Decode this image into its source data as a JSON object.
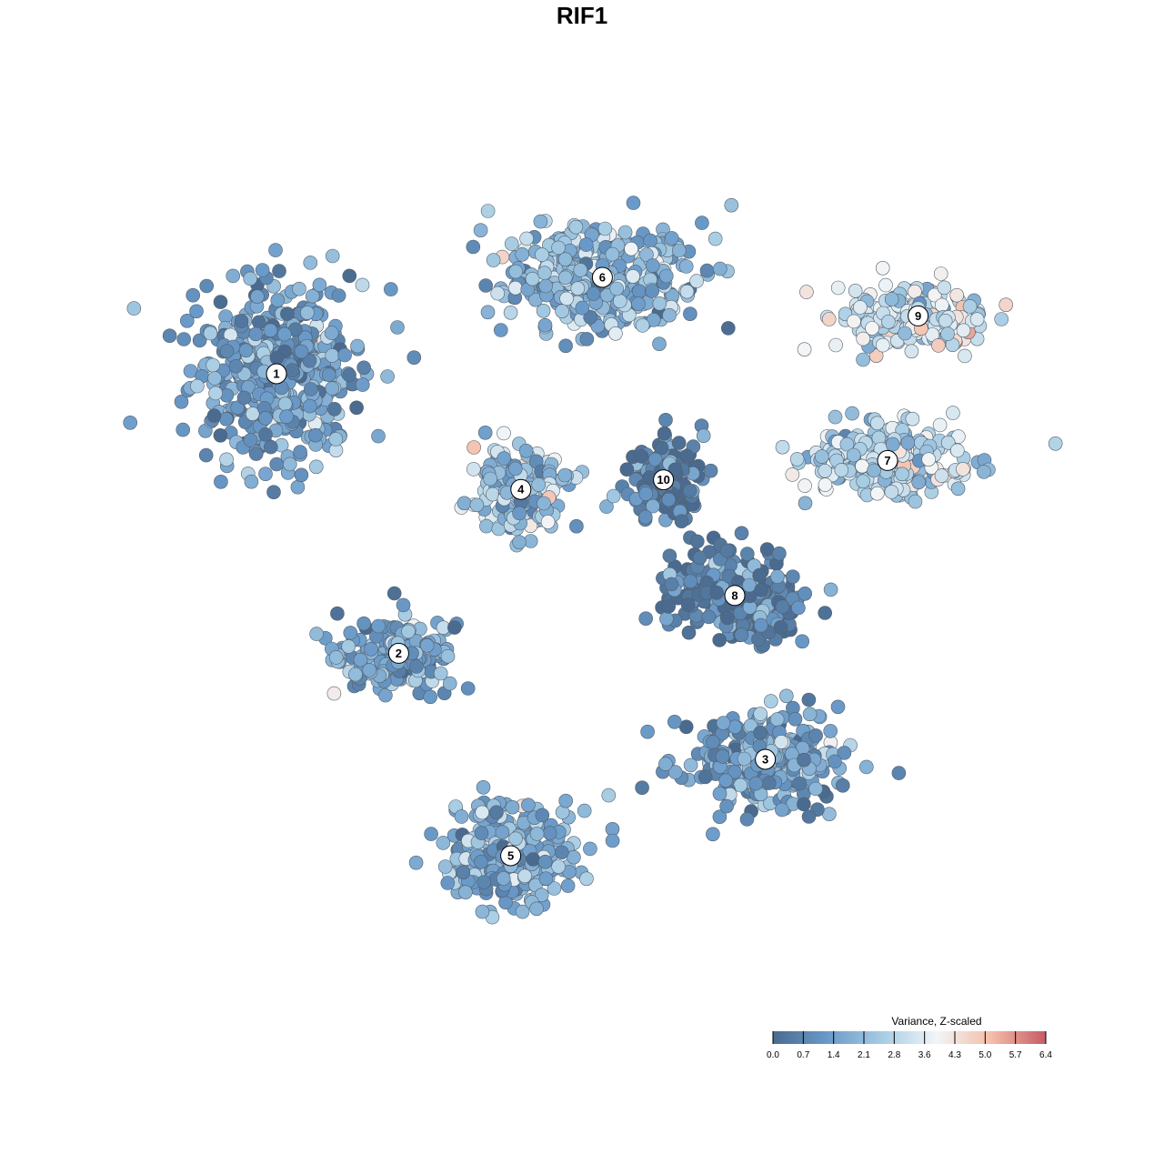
{
  "chart_data": {
    "type": "scatter",
    "title": "RIF1",
    "xlabel": "",
    "ylabel": "",
    "grid": false,
    "color_scale": {
      "title": "Variance, Z-scaled",
      "range": [
        0.0,
        6.4
      ],
      "ticks": [
        "0.0",
        "0.7",
        "1.4",
        "2.1",
        "2.8",
        "3.6",
        "4.3",
        "5.0",
        "5.7",
        "6.4"
      ],
      "colors": [
        "#4a6b8f",
        "#6a9ac9",
        "#a6cce3",
        "#f2f5f7",
        "#f4bda8",
        "#c65b66"
      ],
      "legend_placement": "bottom-right"
    },
    "clusters": [
      {
        "label": "1",
        "x": 0.2,
        "y": 0.35,
        "mean_value": 1.3,
        "spread_x": 0.075,
        "spread_y": 0.08
      },
      {
        "label": "2",
        "x": 0.32,
        "y": 0.64,
        "mean_value": 1.5,
        "spread_x": 0.05,
        "spread_y": 0.035
      },
      {
        "label": "3",
        "x": 0.68,
        "y": 0.75,
        "mean_value": 1.3,
        "spread_x": 0.07,
        "spread_y": 0.045
      },
      {
        "label": "4",
        "x": 0.44,
        "y": 0.47,
        "mean_value": 2.3,
        "spread_x": 0.04,
        "spread_y": 0.04
      },
      {
        "label": "5",
        "x": 0.43,
        "y": 0.85,
        "mean_value": 1.7,
        "spread_x": 0.055,
        "spread_y": 0.05
      },
      {
        "label": "6",
        "x": 0.52,
        "y": 0.25,
        "mean_value": 2.0,
        "spread_x": 0.09,
        "spread_y": 0.045
      },
      {
        "label": "7",
        "x": 0.8,
        "y": 0.44,
        "mean_value": 2.8,
        "spread_x": 0.07,
        "spread_y": 0.035
      },
      {
        "label": "8",
        "x": 0.65,
        "y": 0.58,
        "mean_value": 0.5,
        "spread_x": 0.06,
        "spread_y": 0.04
      },
      {
        "label": "9",
        "x": 0.83,
        "y": 0.29,
        "mean_value": 3.2,
        "spread_x": 0.06,
        "spread_y": 0.03
      },
      {
        "label": "10",
        "x": 0.58,
        "y": 0.46,
        "mean_value": 0.4,
        "spread_x": 0.03,
        "spread_y": 0.04
      }
    ]
  }
}
